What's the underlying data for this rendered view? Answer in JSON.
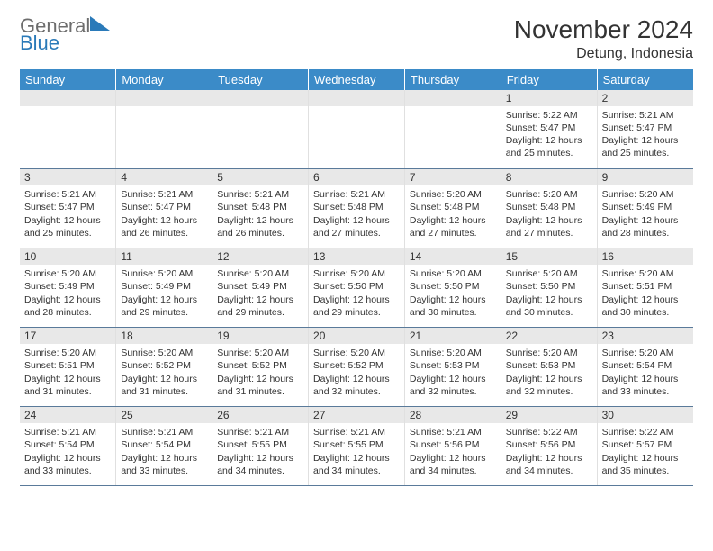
{
  "logo": {
    "gray": "General",
    "blue": "Blue"
  },
  "title": "November 2024",
  "location": "Detung, Indonesia",
  "colors": {
    "header_bg": "#3b8bc8",
    "header_text": "#ffffff",
    "daynum_bg": "#e8e8e8",
    "text": "#333333",
    "logo_gray": "#6d6d6d",
    "logo_blue": "#2a7ab9",
    "row_divider": "#5a7a9a"
  },
  "weekdays": [
    "Sunday",
    "Monday",
    "Tuesday",
    "Wednesday",
    "Thursday",
    "Friday",
    "Saturday"
  ],
  "weeks": [
    [
      null,
      null,
      null,
      null,
      null,
      {
        "n": "1",
        "sr": "Sunrise: 5:22 AM",
        "ss": "Sunset: 5:47 PM",
        "d1": "Daylight: 12 hours",
        "d2": "and 25 minutes."
      },
      {
        "n": "2",
        "sr": "Sunrise: 5:21 AM",
        "ss": "Sunset: 5:47 PM",
        "d1": "Daylight: 12 hours",
        "d2": "and 25 minutes."
      }
    ],
    [
      {
        "n": "3",
        "sr": "Sunrise: 5:21 AM",
        "ss": "Sunset: 5:47 PM",
        "d1": "Daylight: 12 hours",
        "d2": "and 25 minutes."
      },
      {
        "n": "4",
        "sr": "Sunrise: 5:21 AM",
        "ss": "Sunset: 5:47 PM",
        "d1": "Daylight: 12 hours",
        "d2": "and 26 minutes."
      },
      {
        "n": "5",
        "sr": "Sunrise: 5:21 AM",
        "ss": "Sunset: 5:48 PM",
        "d1": "Daylight: 12 hours",
        "d2": "and 26 minutes."
      },
      {
        "n": "6",
        "sr": "Sunrise: 5:21 AM",
        "ss": "Sunset: 5:48 PM",
        "d1": "Daylight: 12 hours",
        "d2": "and 27 minutes."
      },
      {
        "n": "7",
        "sr": "Sunrise: 5:20 AM",
        "ss": "Sunset: 5:48 PM",
        "d1": "Daylight: 12 hours",
        "d2": "and 27 minutes."
      },
      {
        "n": "8",
        "sr": "Sunrise: 5:20 AM",
        "ss": "Sunset: 5:48 PM",
        "d1": "Daylight: 12 hours",
        "d2": "and 27 minutes."
      },
      {
        "n": "9",
        "sr": "Sunrise: 5:20 AM",
        "ss": "Sunset: 5:49 PM",
        "d1": "Daylight: 12 hours",
        "d2": "and 28 minutes."
      }
    ],
    [
      {
        "n": "10",
        "sr": "Sunrise: 5:20 AM",
        "ss": "Sunset: 5:49 PM",
        "d1": "Daylight: 12 hours",
        "d2": "and 28 minutes."
      },
      {
        "n": "11",
        "sr": "Sunrise: 5:20 AM",
        "ss": "Sunset: 5:49 PM",
        "d1": "Daylight: 12 hours",
        "d2": "and 29 minutes."
      },
      {
        "n": "12",
        "sr": "Sunrise: 5:20 AM",
        "ss": "Sunset: 5:49 PM",
        "d1": "Daylight: 12 hours",
        "d2": "and 29 minutes."
      },
      {
        "n": "13",
        "sr": "Sunrise: 5:20 AM",
        "ss": "Sunset: 5:50 PM",
        "d1": "Daylight: 12 hours",
        "d2": "and 29 minutes."
      },
      {
        "n": "14",
        "sr": "Sunrise: 5:20 AM",
        "ss": "Sunset: 5:50 PM",
        "d1": "Daylight: 12 hours",
        "d2": "and 30 minutes."
      },
      {
        "n": "15",
        "sr": "Sunrise: 5:20 AM",
        "ss": "Sunset: 5:50 PM",
        "d1": "Daylight: 12 hours",
        "d2": "and 30 minutes."
      },
      {
        "n": "16",
        "sr": "Sunrise: 5:20 AM",
        "ss": "Sunset: 5:51 PM",
        "d1": "Daylight: 12 hours",
        "d2": "and 30 minutes."
      }
    ],
    [
      {
        "n": "17",
        "sr": "Sunrise: 5:20 AM",
        "ss": "Sunset: 5:51 PM",
        "d1": "Daylight: 12 hours",
        "d2": "and 31 minutes."
      },
      {
        "n": "18",
        "sr": "Sunrise: 5:20 AM",
        "ss": "Sunset: 5:52 PM",
        "d1": "Daylight: 12 hours",
        "d2": "and 31 minutes."
      },
      {
        "n": "19",
        "sr": "Sunrise: 5:20 AM",
        "ss": "Sunset: 5:52 PM",
        "d1": "Daylight: 12 hours",
        "d2": "and 31 minutes."
      },
      {
        "n": "20",
        "sr": "Sunrise: 5:20 AM",
        "ss": "Sunset: 5:52 PM",
        "d1": "Daylight: 12 hours",
        "d2": "and 32 minutes."
      },
      {
        "n": "21",
        "sr": "Sunrise: 5:20 AM",
        "ss": "Sunset: 5:53 PM",
        "d1": "Daylight: 12 hours",
        "d2": "and 32 minutes."
      },
      {
        "n": "22",
        "sr": "Sunrise: 5:20 AM",
        "ss": "Sunset: 5:53 PM",
        "d1": "Daylight: 12 hours",
        "d2": "and 32 minutes."
      },
      {
        "n": "23",
        "sr": "Sunrise: 5:20 AM",
        "ss": "Sunset: 5:54 PM",
        "d1": "Daylight: 12 hours",
        "d2": "and 33 minutes."
      }
    ],
    [
      {
        "n": "24",
        "sr": "Sunrise: 5:21 AM",
        "ss": "Sunset: 5:54 PM",
        "d1": "Daylight: 12 hours",
        "d2": "and 33 minutes."
      },
      {
        "n": "25",
        "sr": "Sunrise: 5:21 AM",
        "ss": "Sunset: 5:54 PM",
        "d1": "Daylight: 12 hours",
        "d2": "and 33 minutes."
      },
      {
        "n": "26",
        "sr": "Sunrise: 5:21 AM",
        "ss": "Sunset: 5:55 PM",
        "d1": "Daylight: 12 hours",
        "d2": "and 34 minutes."
      },
      {
        "n": "27",
        "sr": "Sunrise: 5:21 AM",
        "ss": "Sunset: 5:55 PM",
        "d1": "Daylight: 12 hours",
        "d2": "and 34 minutes."
      },
      {
        "n": "28",
        "sr": "Sunrise: 5:21 AM",
        "ss": "Sunset: 5:56 PM",
        "d1": "Daylight: 12 hours",
        "d2": "and 34 minutes."
      },
      {
        "n": "29",
        "sr": "Sunrise: 5:22 AM",
        "ss": "Sunset: 5:56 PM",
        "d1": "Daylight: 12 hours",
        "d2": "and 34 minutes."
      },
      {
        "n": "30",
        "sr": "Sunrise: 5:22 AM",
        "ss": "Sunset: 5:57 PM",
        "d1": "Daylight: 12 hours",
        "d2": "and 35 minutes."
      }
    ]
  ]
}
